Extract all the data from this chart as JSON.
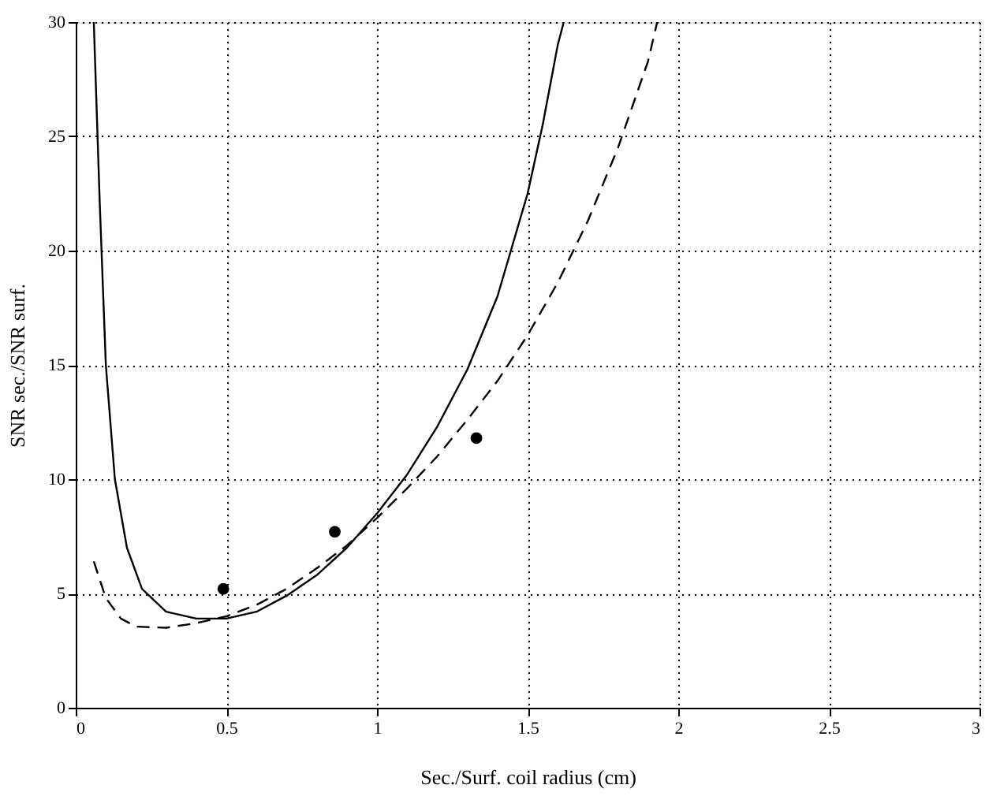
{
  "chart_data": {
    "type": "line",
    "xlabel": "Sec./Surf. coil radius (cm)",
    "ylabel": "SNR sec./SNR surf.",
    "xlim": [
      0,
      3
    ],
    "ylim": [
      0,
      30
    ],
    "xticks": [
      0,
      0.5,
      1,
      1.5,
      2,
      2.5,
      3
    ],
    "yticks": [
      0,
      5,
      10,
      15,
      20,
      25,
      30
    ],
    "grid": true,
    "series": [
      {
        "line_style": "solid",
        "color": "#000000",
        "x": [
          0.06,
          0.08,
          0.1,
          0.13,
          0.17,
          0.22,
          0.3,
          0.4,
          0.5,
          0.6,
          0.7,
          0.8,
          0.9,
          1.0,
          1.1,
          1.2,
          1.3,
          1.4,
          1.5,
          1.55,
          1.6,
          1.62
        ],
        "values": [
          30,
          22,
          15,
          10,
          7,
          5.2,
          4.2,
          3.9,
          3.9,
          4.2,
          4.9,
          5.8,
          7,
          8.5,
          10.2,
          12.3,
          14.8,
          18,
          22.5,
          25.5,
          29,
          30
        ]
      },
      {
        "line_style": "dashed",
        "color": "#000000",
        "x": [
          0.06,
          0.1,
          0.15,
          0.2,
          0.3,
          0.4,
          0.5,
          0.6,
          0.7,
          0.8,
          0.9,
          1.0,
          1.1,
          1.2,
          1.3,
          1.4,
          1.5,
          1.6,
          1.7,
          1.8,
          1.9,
          1.93
        ],
        "values": [
          6.4,
          4.8,
          3.9,
          3.55,
          3.5,
          3.7,
          4,
          4.5,
          5.2,
          6.1,
          7.1,
          8.3,
          9.6,
          11.0,
          12.6,
          14.3,
          16.3,
          18.6,
          21.3,
          24.5,
          28.3,
          30
        ]
      },
      {
        "type": "scatter",
        "marker": "circle",
        "color": "#000000",
        "x": [
          0.49,
          0.86,
          1.33
        ],
        "values": [
          5.2,
          7.7,
          11.8
        ]
      }
    ]
  }
}
